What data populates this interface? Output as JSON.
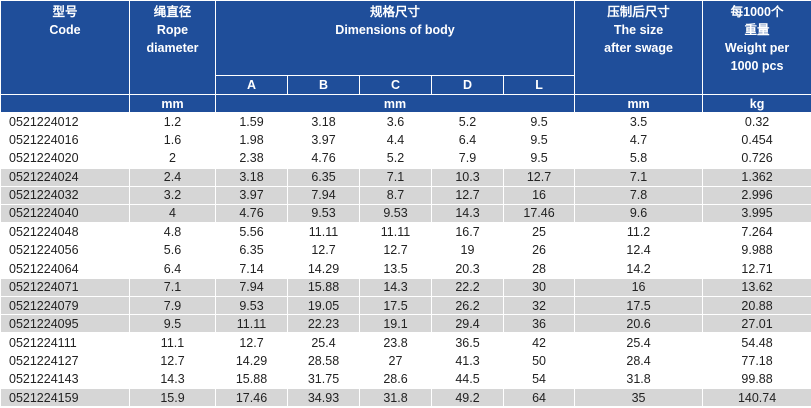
{
  "header": {
    "code": [
      "型号",
      "Code"
    ],
    "rope": [
      "绳直径",
      "Rope",
      "diameter"
    ],
    "body": [
      "规格尺寸",
      "Dimensions of body"
    ],
    "swage": [
      "压制后尺寸",
      "The size",
      "after swage"
    ],
    "weight": [
      "每1000个",
      "重量",
      "Weight per",
      "1000 pcs"
    ],
    "sub": [
      "A",
      "B",
      "C",
      "D",
      "L"
    ]
  },
  "units": {
    "code": "",
    "rope": "mm",
    "body": "mm",
    "swage": "mm",
    "weight": "kg"
  },
  "rows": [
    [
      "0521224012",
      "1.2",
      "1.59",
      "3.18",
      "3.6",
      "5.2",
      "9.5",
      "3.5",
      "0.32"
    ],
    [
      "0521224016",
      "1.6",
      "1.98",
      "3.97",
      "4.4",
      "6.4",
      "9.5",
      "4.7",
      "0.454"
    ],
    [
      "0521224020",
      "2",
      "2.38",
      "4.76",
      "5.2",
      "7.9",
      "9.5",
      "5.8",
      "0.726"
    ],
    [
      "0521224024",
      "2.4",
      "3.18",
      "6.35",
      "7.1",
      "10.3",
      "12.7",
      "7.1",
      "1.362"
    ],
    [
      "0521224032",
      "3.2",
      "3.97",
      "7.94",
      "8.7",
      "12.7",
      "16",
      "7.8",
      "2.996"
    ],
    [
      "0521224040",
      "4",
      "4.76",
      "9.53",
      "9.53",
      "14.3",
      "17.46",
      "9.6",
      "3.995"
    ],
    [
      "0521224048",
      "4.8",
      "5.56",
      "11.11",
      "11.11",
      "16.7",
      "25",
      "11.2",
      "7.264"
    ],
    [
      "0521224056",
      "5.6",
      "6.35",
      "12.7",
      "12.7",
      "19",
      "26",
      "12.4",
      "9.988"
    ],
    [
      "0521224064",
      "6.4",
      "7.14",
      "14.29",
      "13.5",
      "20.3",
      "28",
      "14.2",
      "12.71"
    ],
    [
      "0521224071",
      "7.1",
      "7.94",
      "15.88",
      "14.3",
      "22.2",
      "30",
      "16",
      "13.62"
    ],
    [
      "0521224079",
      "7.9",
      "9.53",
      "19.05",
      "17.5",
      "26.2",
      "32",
      "17.5",
      "20.88"
    ],
    [
      "0521224095",
      "9.5",
      "11.11",
      "22.23",
      "19.1",
      "29.4",
      "36",
      "20.6",
      "27.01"
    ],
    [
      "0521224111",
      "11.1",
      "12.7",
      "25.4",
      "23.8",
      "36.5",
      "42",
      "25.4",
      "54.48"
    ],
    [
      "0521224127",
      "12.7",
      "14.29",
      "28.58",
      "27",
      "41.3",
      "50",
      "28.4",
      "77.18"
    ],
    [
      "0521224143",
      "14.3",
      "15.88",
      "31.75",
      "28.6",
      "44.5",
      "54",
      "31.8",
      "99.88"
    ],
    [
      "0521224159",
      "15.9",
      "17.46",
      "34.93",
      "31.8",
      "49.2",
      "64",
      "35",
      "140.74"
    ]
  ],
  "colors": {
    "header_bg": "#1f4e9a",
    "header_text": "#ffffff",
    "row_light": "#ffffff",
    "row_dark": "#d6d6d6"
  }
}
